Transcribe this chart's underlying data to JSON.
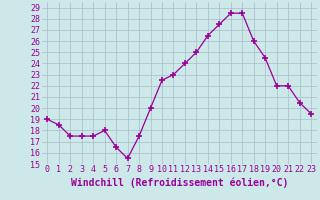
{
  "x": [
    0,
    1,
    2,
    3,
    4,
    5,
    6,
    7,
    8,
    9,
    10,
    11,
    12,
    13,
    14,
    15,
    16,
    17,
    18,
    19,
    20,
    21,
    22,
    23
  ],
  "y": [
    19,
    18.5,
    17.5,
    17.5,
    17.5,
    18,
    16.5,
    15.5,
    17.5,
    20,
    22.5,
    23,
    24,
    25,
    26.5,
    27.5,
    28.5,
    28.5,
    26,
    24.5,
    22,
    22,
    20.5,
    19.5
  ],
  "line_color": "#990099",
  "marker": "+",
  "marker_size": 4,
  "bg_color": "#cce8e8",
  "grid_color": "#aabbc8",
  "ylim_min": 15,
  "ylim_max": 29.5,
  "yticks": [
    15,
    16,
    17,
    18,
    19,
    20,
    21,
    22,
    23,
    24,
    25,
    26,
    27,
    28,
    29
  ],
  "xlabel": "Windchill (Refroidissement éolien,°C)",
  "xlabel_fontsize": 7.0,
  "tick_fontsize": 6.0,
  "xlim_min": -0.5,
  "xlim_max": 23.5,
  "xlabel_color": "#990099",
  "tick_color": "#990099"
}
